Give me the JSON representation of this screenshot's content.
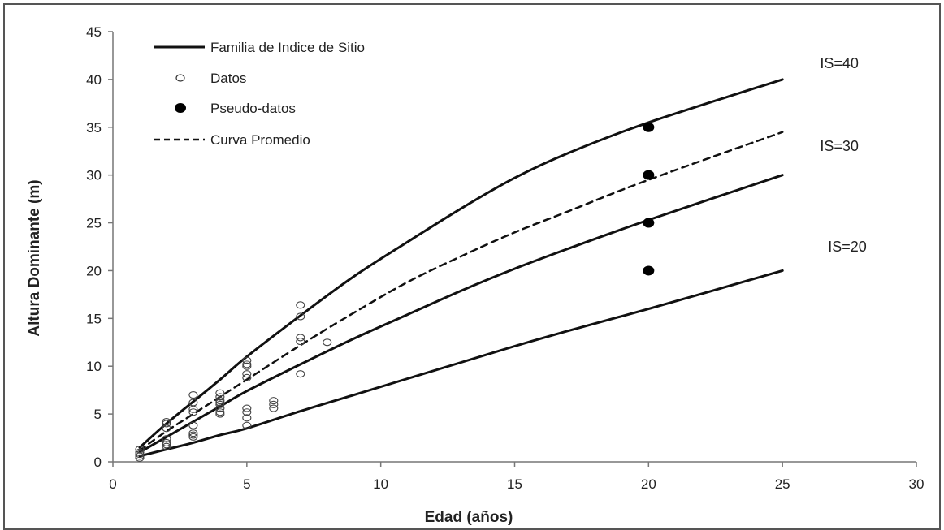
{
  "chart_data": {
    "type": "line",
    "xlabel": "Edad (años)",
    "ylabel": "Altura Dominante (m)",
    "xlim": [
      0,
      30
    ],
    "ylim": [
      0,
      45
    ],
    "xticks": [
      0,
      5,
      10,
      15,
      20,
      25,
      30
    ],
    "yticks": [
      0,
      5,
      10,
      15,
      20,
      25,
      30,
      35,
      40,
      45
    ],
    "grid": false,
    "legend_position": "top-left",
    "legend": [
      {
        "label": "Familia de Indice de Sitio",
        "marker": "line-solid"
      },
      {
        "label": "Datos",
        "marker": "open-circle"
      },
      {
        "label": "Pseudo-datos",
        "marker": "filled-circle"
      },
      {
        "label": "Curva Promedio",
        "marker": "line-dashed"
      }
    ],
    "series": [
      {
        "name": "IS=40",
        "style": "solid",
        "x": [
          1,
          2,
          3,
          4,
          5,
          7,
          9,
          11,
          13,
          15,
          17,
          20,
          25
        ],
        "y": [
          1.5,
          4.0,
          6.3,
          8.6,
          11.0,
          15.3,
          19.4,
          23.0,
          26.5,
          29.7,
          32.3,
          35.5,
          40.0
        ]
      },
      {
        "name": "Curva Promedio",
        "style": "dashed",
        "x": [
          1,
          2,
          3,
          4,
          5,
          7,
          9,
          11,
          13,
          15,
          17,
          20,
          25
        ],
        "y": [
          1.2,
          3.2,
          5.0,
          6.8,
          8.6,
          12.2,
          15.6,
          18.8,
          21.5,
          24.0,
          26.2,
          29.5,
          34.5
        ]
      },
      {
        "name": "IS=30",
        "style": "solid",
        "x": [
          1,
          2,
          3,
          4,
          5,
          7,
          9,
          11,
          13,
          15,
          17,
          20,
          25
        ],
        "y": [
          1.0,
          2.6,
          4.2,
          5.8,
          7.4,
          10.2,
          12.9,
          15.4,
          17.9,
          20.2,
          22.3,
          25.3,
          30.0
        ]
      },
      {
        "name": "IS=20",
        "style": "solid",
        "x": [
          1,
          2,
          3,
          4,
          5,
          7,
          9,
          11,
          13,
          15,
          17,
          20,
          25
        ],
        "y": [
          0.6,
          1.3,
          2.0,
          2.8,
          3.5,
          5.3,
          7.0,
          8.7,
          10.4,
          12.1,
          13.7,
          16.0,
          20.0
        ]
      }
    ],
    "datos": {
      "x": [
        1,
        1,
        1,
        1,
        1,
        2,
        2,
        2,
        2,
        2,
        2,
        2,
        3,
        3,
        3,
        3,
        3,
        3,
        3,
        3,
        4,
        4,
        4,
        4,
        4,
        4,
        4,
        4,
        5,
        5,
        5,
        5,
        5,
        5,
        5,
        5,
        5,
        6,
        6,
        6,
        7,
        7,
        7,
        7,
        7,
        8
      ],
      "y": [
        0.4,
        0.8,
        1.0,
        1.3,
        0.6,
        1.6,
        2.0,
        2.4,
        3.5,
        4.0,
        4.2,
        1.8,
        2.6,
        3.0,
        3.8,
        5.2,
        5.5,
        6.2,
        7.0,
        2.8,
        5.2,
        5.6,
        6.0,
        6.4,
        6.8,
        7.2,
        5.0,
        6.2,
        3.8,
        4.6,
        5.2,
        5.6,
        8.8,
        9.2,
        10.2,
        10.6,
        10.0,
        5.6,
        6.0,
        6.4,
        9.2,
        12.6,
        13.0,
        15.2,
        16.4,
        12.5
      ]
    },
    "pseudo_datos": {
      "x": [
        20,
        20,
        20,
        20
      ],
      "y": [
        35,
        30,
        25,
        20
      ]
    },
    "annotations": [
      {
        "text": "IS=40",
        "x": 26.4,
        "y": 41.2
      },
      {
        "text": "IS=30",
        "x": 26.4,
        "y": 32.5
      },
      {
        "text": "IS=20",
        "x": 26.7,
        "y": 22.0
      }
    ]
  }
}
